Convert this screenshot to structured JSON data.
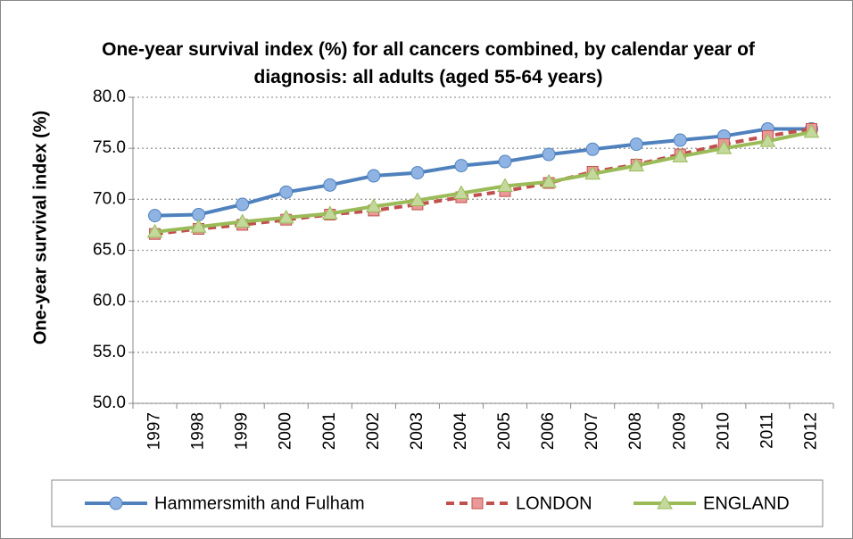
{
  "chart_data": {
    "type": "line",
    "title": "One-year survival index (%) for all cancers combined, by calendar year of diagnosis: all adults (aged 55-64 years)",
    "y_label": "One-year survival index (%)",
    "categories": [
      "1997",
      "1998",
      "1999",
      "2000",
      "2001",
      "2002",
      "2003",
      "2004",
      "2005",
      "2006",
      "2007",
      "2008",
      "2009",
      "2010",
      "2011",
      "2012"
    ],
    "series": [
      {
        "name": "Hammersmith and Fulham",
        "color": "#4f81bd",
        "marker": "circle",
        "dash": false,
        "values": [
          68.4,
          68.5,
          69.5,
          70.7,
          71.4,
          72.3,
          72.6,
          73.3,
          73.7,
          74.4,
          74.9,
          75.4,
          75.8,
          76.2,
          76.9,
          76.9
        ]
      },
      {
        "name": "LONDON",
        "color": "#c0504d",
        "marker": "square",
        "dash": true,
        "values": [
          66.6,
          67.1,
          67.5,
          68.0,
          68.5,
          68.9,
          69.5,
          70.2,
          70.8,
          71.6,
          72.7,
          73.4,
          74.4,
          75.4,
          76.2,
          76.9
        ]
      },
      {
        "name": "ENGLAND",
        "color": "#9bbb59",
        "marker": "triangle",
        "dash": false,
        "values": [
          66.8,
          67.3,
          67.8,
          68.2,
          68.6,
          69.3,
          69.9,
          70.6,
          71.3,
          71.7,
          72.5,
          73.3,
          74.2,
          75.0,
          75.7,
          76.6
        ]
      }
    ],
    "ylim": [
      50,
      80
    ],
    "yticks": [
      {
        "value": 50,
        "label": "50.0"
      },
      {
        "value": 55,
        "label": "55.0"
      },
      {
        "value": 60,
        "label": "60.0"
      },
      {
        "value": 65,
        "label": "65.0"
      },
      {
        "value": 70,
        "label": "70.0"
      },
      {
        "value": 75,
        "label": "75.0"
      },
      {
        "value": 80,
        "label": "80.0"
      }
    ],
    "grid": true,
    "legend": "bottom"
  }
}
